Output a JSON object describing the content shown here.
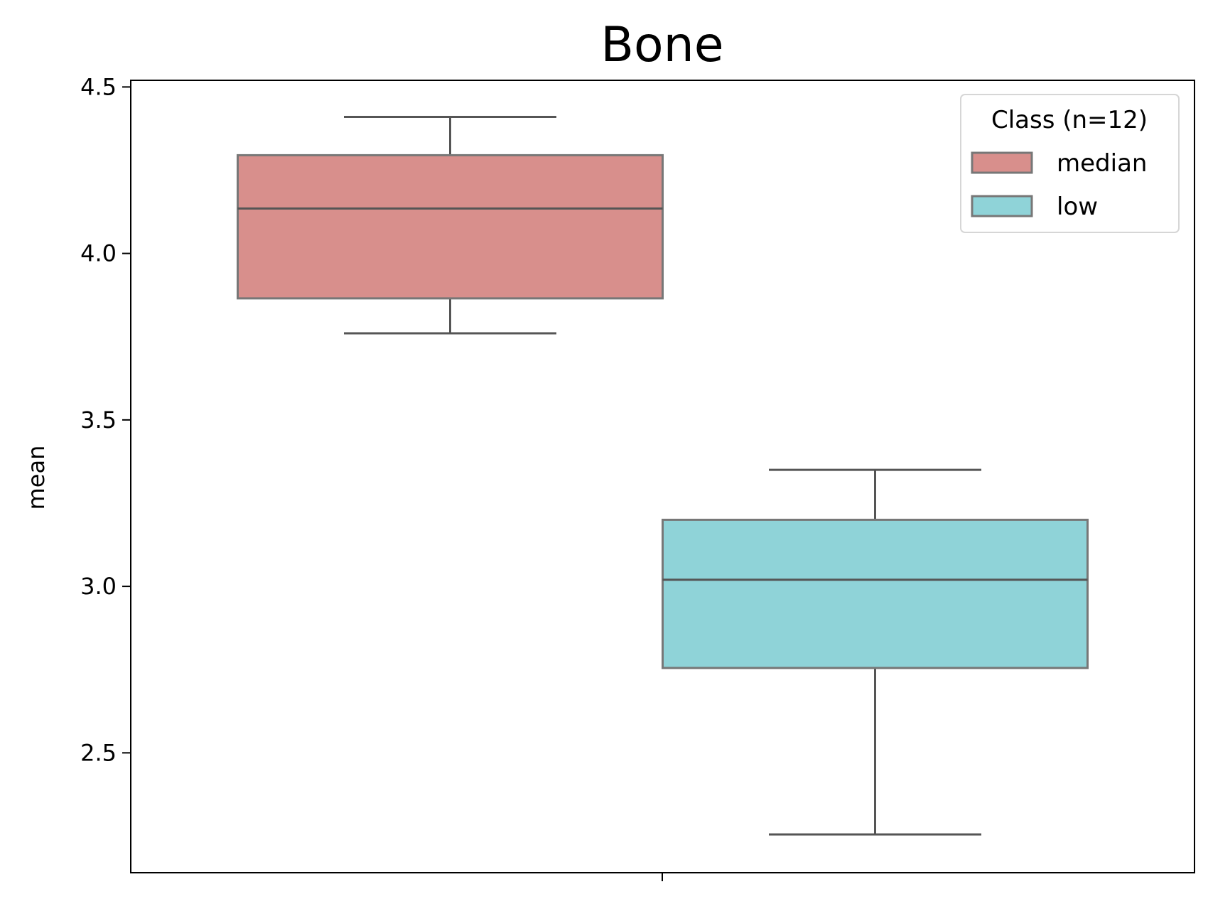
{
  "chart_data": {
    "type": "box",
    "title": "Bone",
    "xlabel": "",
    "ylabel": "mean",
    "ylim": [
      2.14,
      4.52
    ],
    "yticks": [
      2.5,
      3.0,
      3.5,
      4.0,
      4.5
    ],
    "ytick_labels": [
      "2.5",
      "3.0",
      "3.5",
      "4.0",
      "4.5"
    ],
    "grid": false,
    "legend": {
      "title": "Class (n=12)",
      "placement": "top-right"
    },
    "series": [
      {
        "name": "median",
        "color": "#d88f8c",
        "whisker_low": 3.76,
        "q1": 3.865,
        "median": 4.135,
        "q3": 4.295,
        "whisker_high": 4.41
      },
      {
        "name": "low",
        "color": "#8fd3d8",
        "whisker_low": 2.255,
        "q1": 2.755,
        "median": 3.02,
        "q3": 3.2,
        "whisker_high": 3.35
      }
    ]
  }
}
